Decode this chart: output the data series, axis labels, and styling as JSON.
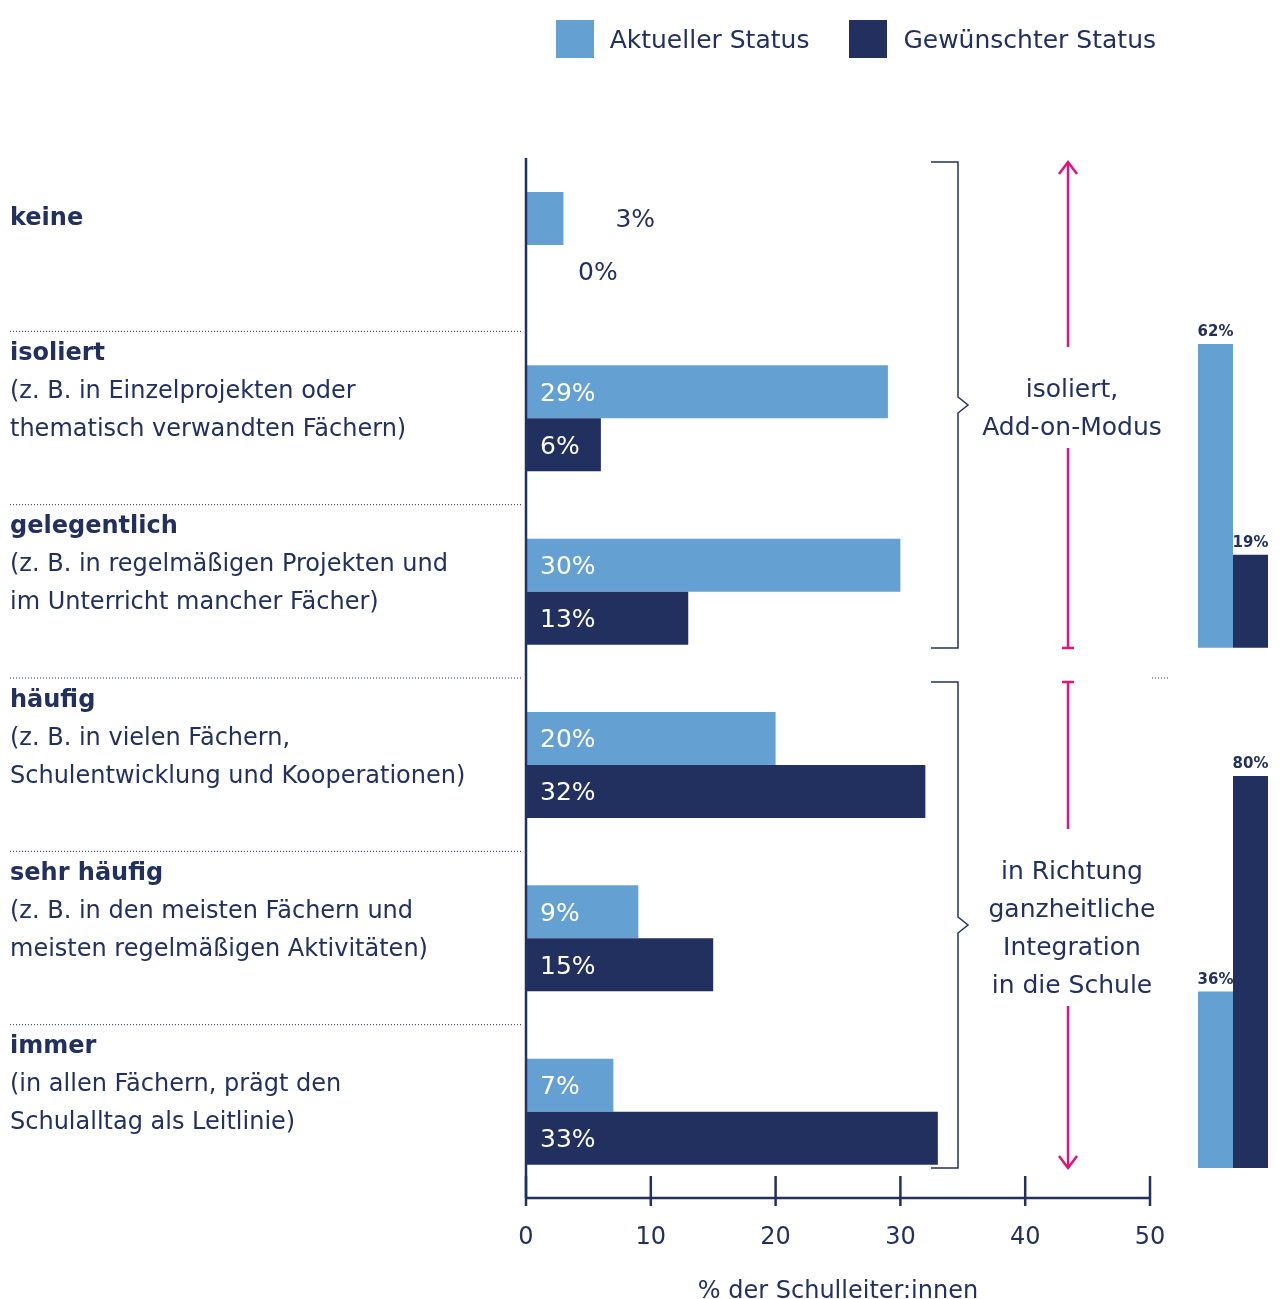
{
  "chart_data": [
    {
      "type": "bar",
      "orientation": "horizontal",
      "categories": [
        "keine",
        "isoliert (z. B. in Einzelprojekten oder thematisch verwandten Fächern)",
        "gelegentlich (z. B. in regelmäßigen Projekten und im Unterricht mancher Fächer)",
        "häufig (z. B. in vielen Fächern, Schulentwicklung und Kooperationen)",
        "sehr häufig (z. B. in den meisten Fächern und meisten regelmäßigen Aktivitäten)",
        "immer (in allen Fächern, prägt den Schulalltag als Leitlinie)"
      ],
      "series": [
        {
          "name": "Aktueller Status",
          "color": "#65a0d3",
          "values": [
            3,
            29,
            30,
            20,
            9,
            7
          ],
          "value_labels": [
            "3%",
            "29%",
            "30%",
            "20%",
            "9%",
            "7%"
          ]
        },
        {
          "name": "Gewünschter Status",
          "color": "#22305f",
          "values": [
            0,
            6,
            13,
            32,
            15,
            33
          ],
          "value_labels": [
            "0%",
            "6%",
            "13%",
            "32%",
            "15%",
            "33%"
          ]
        }
      ],
      "xlim": [
        0,
        50
      ],
      "xticks": [
        0,
        10,
        20,
        30,
        40,
        50
      ],
      "xlabel": "% der Schulleiter:innen",
      "legend": "top right",
      "annotations": [
        "isoliert, Add-on-Modus",
        "in Richtung ganzheitliche Integration in die Schule"
      ]
    },
    {
      "type": "bar",
      "categories": [
        null
      ],
      "series": [
        {
          "color": "#65a0d3",
          "values": [
            62
          ],
          "value_labels": [
            "62%"
          ]
        },
        {
          "color": "#22305f",
          "values": [
            19
          ],
          "value_labels": [
            "19%"
          ]
        }
      ]
    },
    {
      "type": "bar",
      "categories": [
        null
      ],
      "series": [
        {
          "color": "#65a0d3",
          "values": [
            36
          ],
          "value_labels": [
            "36%"
          ]
        },
        {
          "color": "#22305f",
          "values": [
            80
          ],
          "value_labels": [
            "80%"
          ]
        }
      ]
    }
  ]
}
